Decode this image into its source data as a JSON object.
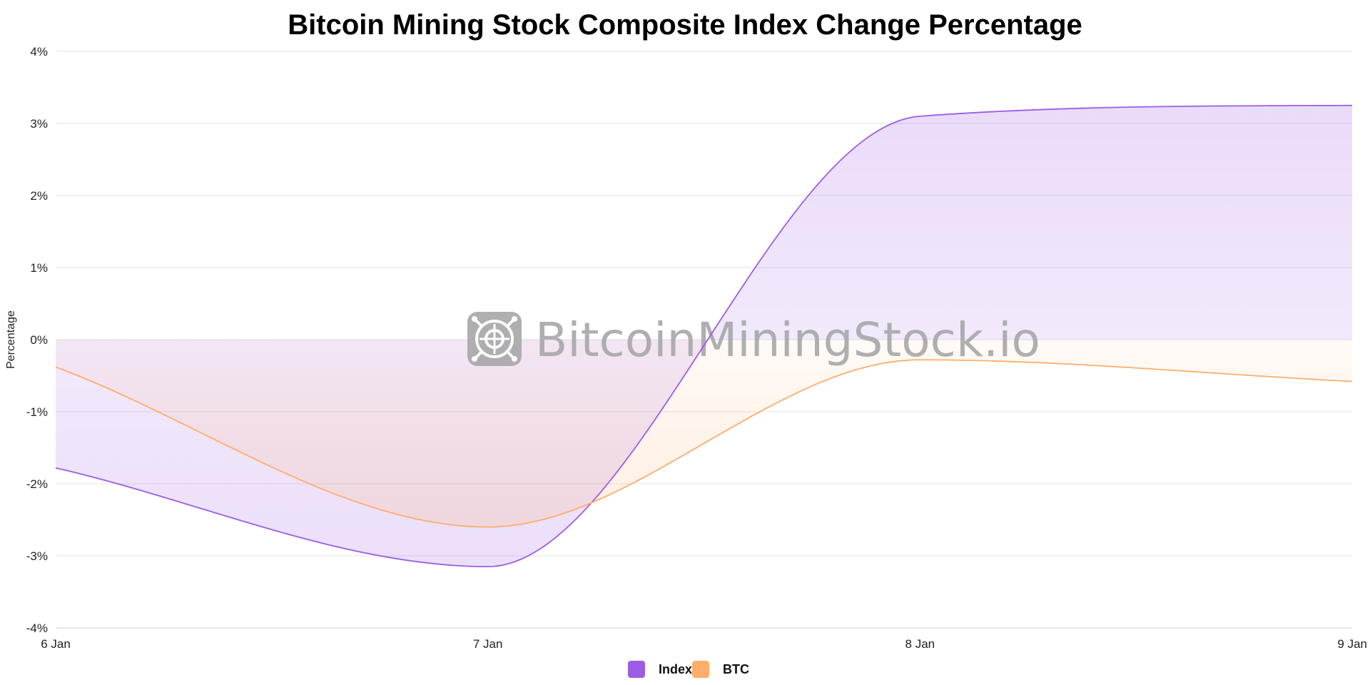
{
  "chart_data": {
    "type": "area",
    "title": "Bitcoin Mining Stock Composite Index Change Percentage",
    "xlabel": "",
    "ylabel": "Percentage",
    "categories": [
      "6 Jan",
      "7 Jan",
      "8 Jan",
      "9 Jan"
    ],
    "ylim": [
      -4,
      4
    ],
    "yticks": [
      4,
      3,
      2,
      1,
      0,
      -1,
      -2,
      -3,
      -4
    ],
    "ytick_labels": [
      "4%",
      "3%",
      "2%",
      "1%",
      "0%",
      "-1%",
      "-2%",
      "-3%",
      "-4%"
    ],
    "grid": true,
    "legend": "bottom-center",
    "series": [
      {
        "name": "Index",
        "color": "#9b5de5",
        "values": [
          -1.78,
          -3.15,
          3.1,
          3.25
        ]
      },
      {
        "name": "BTC",
        "color": "#ffad6b",
        "values": [
          -0.38,
          -2.6,
          -0.28,
          -0.58
        ]
      }
    ]
  },
  "watermark": {
    "text": "BitcoinMiningStock.io",
    "icon": "mining-rig-logo-icon"
  }
}
